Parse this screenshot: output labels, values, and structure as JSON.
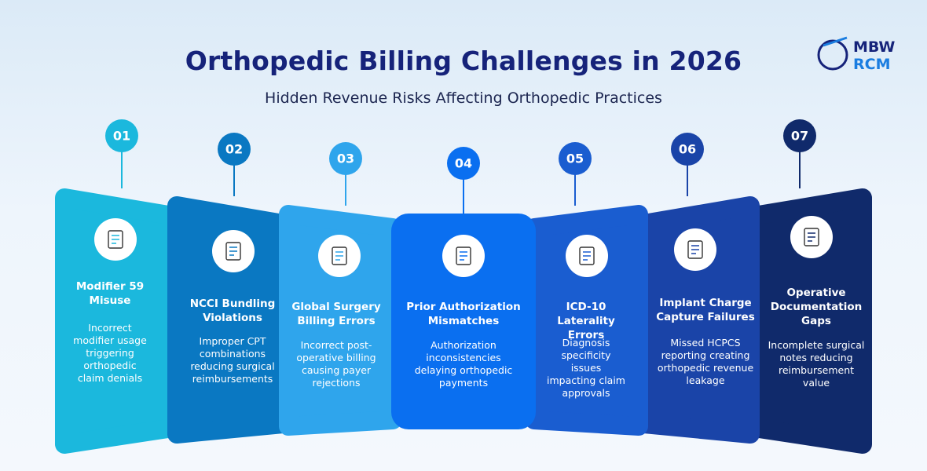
{
  "header": {
    "title": "Orthopedic Billing Challenges in 2026",
    "subtitle": "Hidden Revenue Risks Affecting Orthopedic Practices"
  },
  "logo": {
    "line1": "MBW",
    "line2": "RCM"
  },
  "items": [
    {
      "number": "01",
      "title": "Modifier 59 Misuse",
      "description": "Incorrect modifier usage triggering orthopedic claim denials"
    },
    {
      "number": "02",
      "title": "NCCI Bundling Violations",
      "description": "Improper CPT combinations reducing surgical reimbursements"
    },
    {
      "number": "03",
      "title": "Global Surgery Billing Errors",
      "description": "Incorrect post-operative billing causing payer rejections"
    },
    {
      "number": "04",
      "title": "Prior Authorization Mismatches",
      "description": "Authorization inconsistencies delaying orthopedic payments"
    },
    {
      "number": "05",
      "title": "ICD-10 Laterality Errors",
      "description": "Diagnosis specificity issues impacting claim approvals"
    },
    {
      "number": "06",
      "title": "Implant Charge Capture Failures",
      "description": "Missed HCPCS reporting creating orthopedic revenue leakage"
    },
    {
      "number": "07",
      "title": "Operative Documentation Gaps",
      "description": "Incomplete surgical notes reducing reimbursement value"
    }
  ]
}
